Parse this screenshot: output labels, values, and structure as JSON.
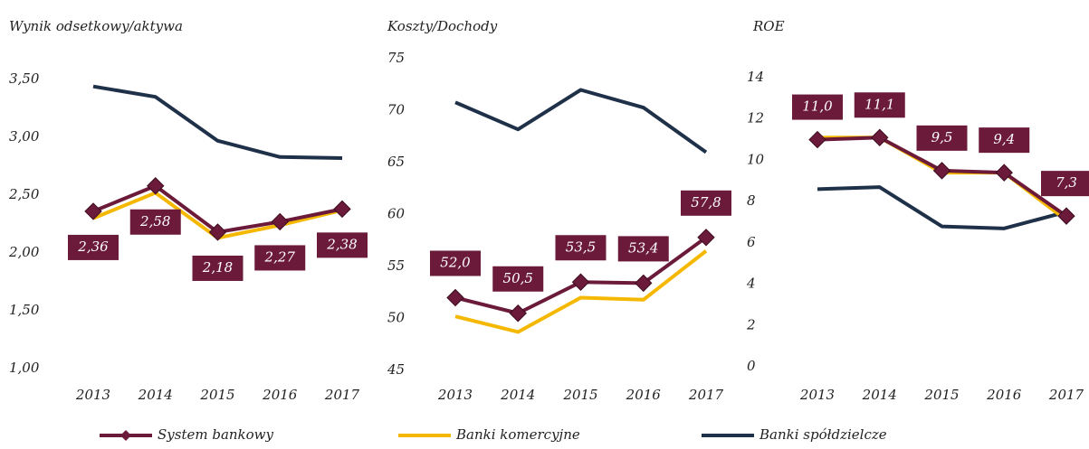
{
  "legend": [
    {
      "name": "System bankowy",
      "color": "#6b1a3a"
    },
    {
      "name": "Banki komercyjne",
      "color": "#f5b800"
    },
    {
      "name": "Banki spółdzielcze",
      "color": "#1f3049"
    }
  ],
  "chart_data": [
    {
      "type": "line",
      "title": "Wynik odsetkowy/aktywa",
      "categories": [
        "2013",
        "2014",
        "2015",
        "2016",
        "2017"
      ],
      "ylim": [
        1,
        3.5
      ],
      "yticks": [
        {
          "value": 1,
          "label": "1,00"
        },
        {
          "value": 1.5,
          "label": "1,50"
        },
        {
          "value": 2,
          "label": "2,00"
        },
        {
          "value": 2.5,
          "label": "2,50"
        },
        {
          "value": 3,
          "label": "3,00"
        },
        {
          "value": 3.5,
          "label": "3,50"
        }
      ],
      "series": [
        {
          "values": [
            2.36,
            2.58,
            2.18,
            2.27,
            2.38
          ],
          "value_labels": [
            "2,36",
            "2,58",
            "2,18",
            "2,27",
            "2,38"
          ]
        },
        {
          "values": [
            2.3,
            2.52,
            2.13,
            2.24,
            2.37
          ]
        },
        {
          "values": [
            3.44,
            3.35,
            2.97,
            2.83,
            2.82
          ]
        }
      ]
    },
    {
      "type": "line",
      "title": "Koszty/Dochody",
      "categories": [
        "2013",
        "2014",
        "2015",
        "2016",
        "2017"
      ],
      "ylim": [
        45,
        75
      ],
      "yticks": [
        45,
        50,
        55,
        60,
        65,
        70,
        75
      ],
      "series": [
        {
          "values": [
            52.0,
            50.5,
            53.5,
            53.4,
            57.8
          ],
          "value_labels": [
            "52,0",
            "50,5",
            "53,5",
            "53,4",
            "57,8"
          ]
        },
        {
          "values": [
            50.2,
            48.7,
            52.0,
            51.8,
            56.5
          ]
        },
        {
          "values": [
            70.8,
            68.2,
            72.0,
            70.3,
            66.0
          ]
        }
      ]
    },
    {
      "type": "line",
      "title": "ROE",
      "categories": [
        "2013",
        "2014",
        "2015",
        "2016",
        "2017"
      ],
      "ylim": [
        0,
        14
      ],
      "yticks": [
        0,
        2,
        4,
        6,
        8,
        10,
        12,
        14
      ],
      "series": [
        {
          "values": [
            11.0,
            11.1,
            9.5,
            9.4,
            7.3
          ],
          "value_labels": [
            "11,0",
            "11,1",
            "9,5",
            "9,4",
            "7,3"
          ]
        },
        {
          "values": [
            11.1,
            11.1,
            9.4,
            9.4,
            7.1
          ]
        },
        {
          "values": [
            8.6,
            8.7,
            6.8,
            6.7,
            7.5
          ]
        }
      ]
    }
  ]
}
